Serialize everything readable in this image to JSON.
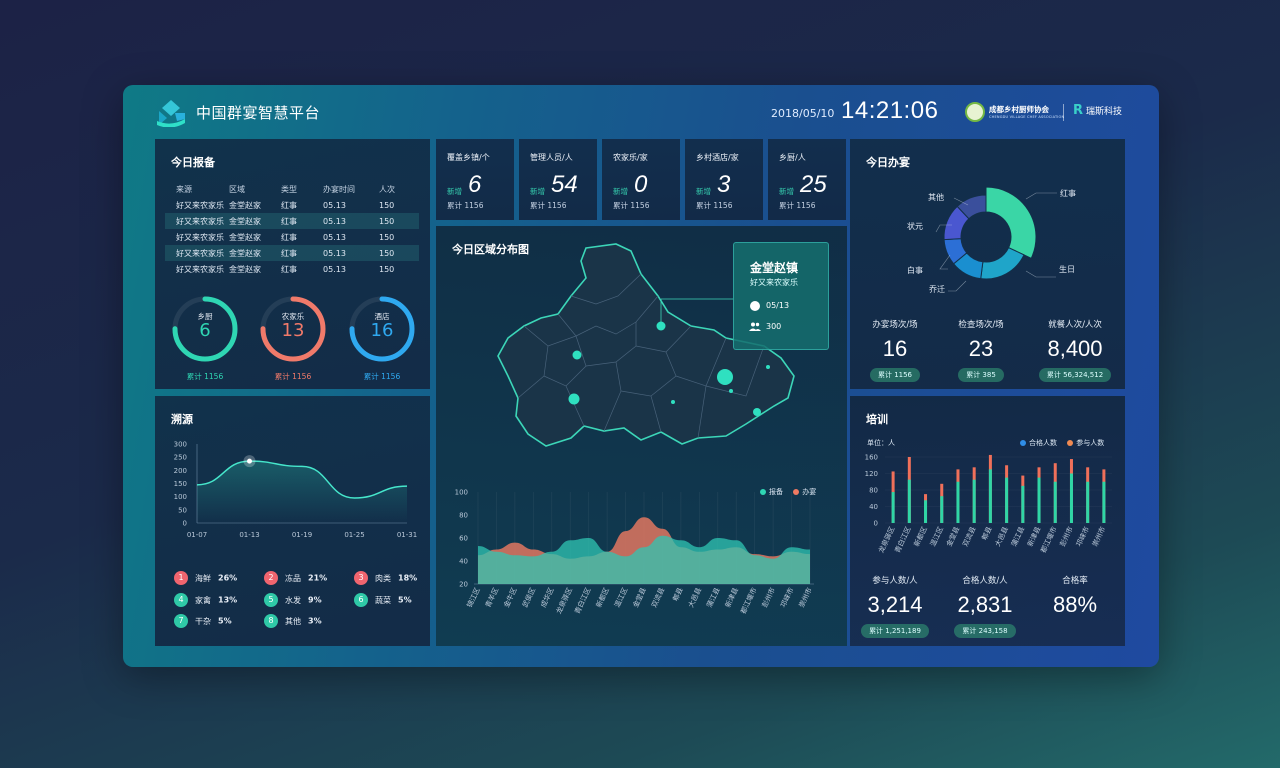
{
  "header": {
    "title": "中国群宴智慧平台",
    "date": "2018/05/10",
    "time": "14:21:06",
    "association_name": "成都乡村厨师协会",
    "association_sub": "CHENGDU VILLAGE CHEF ASSOCIATION",
    "brand": "瑞斯科技",
    "brand_mark": "R"
  },
  "report": {
    "title": "今日报备",
    "columns": [
      "来源",
      "区域",
      "类型",
      "办宴时间",
      "人次"
    ],
    "rows": [
      [
        "好又来农家乐",
        "金堂赵家",
        "红事",
        "05.13",
        "150"
      ],
      [
        "好又来农家乐",
        "金堂赵家",
        "红事",
        "05.13",
        "150"
      ],
      [
        "好又来农家乐",
        "金堂赵家",
        "红事",
        "05.13",
        "150"
      ],
      [
        "好又来农家乐",
        "金堂赵家",
        "红事",
        "05.13",
        "150"
      ],
      [
        "好又来农家乐",
        "金堂赵家",
        "红事",
        "05.13",
        "150"
      ]
    ],
    "rings": [
      {
        "label": "乡厨",
        "value": "6",
        "total": "累计 1156",
        "color": "#2fd6b3",
        "fraction": 0.75
      },
      {
        "label": "农家乐",
        "value": "13",
        "total": "累计 1156",
        "color": "#f07a6a",
        "fraction": 0.75
      },
      {
        "label": "酒店",
        "value": "16",
        "total": "累计 1156",
        "color": "#2fa9f0",
        "fraction": 0.75
      }
    ]
  },
  "stats": [
    {
      "label": "覆盖乡镇/个",
      "new_label": "新增",
      "value": "6",
      "total": "累计 1156"
    },
    {
      "label": "管理人员/人",
      "new_label": "新增",
      "value": "54",
      "total": "累计 1156"
    },
    {
      "label": "农家乐/家",
      "new_label": "新增",
      "value": "0",
      "total": "累计 1156"
    },
    {
      "label": "乡村酒店/家",
      "new_label": "新增",
      "value": "3",
      "total": "累计 1156"
    },
    {
      "label": "乡厨/人",
      "new_label": "新增",
      "value": "25",
      "total": "累计 1156"
    }
  ],
  "map": {
    "title": "今日区域分布图",
    "popup": {
      "town": "金堂赵镇",
      "venue": "好又来农家乐",
      "date": "05/13",
      "count": "300"
    },
    "legend": [
      {
        "name": "报备",
        "color": "#2fd6b3"
      },
      {
        "name": "办宴",
        "color": "#ef7a62"
      }
    ]
  },
  "trace": {
    "title": "溯源",
    "categories": [
      {
        "num": "1",
        "label": "海鲜",
        "pct": "26%",
        "color": "#f0656f"
      },
      {
        "num": "2",
        "label": "冻品",
        "pct": "21%",
        "color": "#f0656f"
      },
      {
        "num": "3",
        "label": "肉类",
        "pct": "18%",
        "color": "#f0656f"
      },
      {
        "num": "4",
        "label": "家禽",
        "pct": "13%",
        "color": "#2fc9a7"
      },
      {
        "num": "5",
        "label": "水发",
        "pct": "9%",
        "color": "#2fc9a7"
      },
      {
        "num": "6",
        "label": "蔬菜",
        "pct": "5%",
        "color": "#2fc9a7"
      },
      {
        "num": "7",
        "label": "干杂",
        "pct": "5%",
        "color": "#2fc9a7"
      },
      {
        "num": "8",
        "label": "其他",
        "pct": "3%",
        "color": "#2fc9a7"
      }
    ]
  },
  "banquet": {
    "title": "今日办宴",
    "pie_labels": [
      "红事",
      "生日",
      "乔迁",
      "白事",
      "状元",
      "其他"
    ],
    "kpis": [
      {
        "label": "办宴场次/场",
        "value": "16",
        "total": "累计 1156"
      },
      {
        "label": "检查场次/场",
        "value": "23",
        "total": "累计 385"
      },
      {
        "label": "就餐人次/人次",
        "value": "8,400",
        "total": "累计 56,324,512"
      }
    ]
  },
  "training": {
    "title": "培训",
    "unit": "单位：人",
    "legend": [
      {
        "name": "合格人数",
        "color": "#2f8ee8"
      },
      {
        "name": "参与人数",
        "color": "#f08a52"
      }
    ],
    "kpis": [
      {
        "label": "参与人数/人",
        "value": "3,214",
        "total": "累计 1,251,189"
      },
      {
        "label": "合格人数/人",
        "value": "2,831",
        "total": "累计 243,158"
      },
      {
        "label": "合格率",
        "value": "88%",
        "total": ""
      }
    ]
  },
  "chart_data": [
    {
      "type": "line",
      "title": "溯源",
      "x": [
        "01-07",
        "01-13",
        "01-19",
        "01-25",
        "01-31"
      ],
      "ylim": [
        0,
        300
      ],
      "yticks": [
        0,
        50,
        100,
        150,
        200,
        250,
        300
      ],
      "series": [
        {
          "name": "溯源",
          "values": [
            145,
            235,
            215,
            95,
            140
          ]
        }
      ]
    },
    {
      "type": "area",
      "title": "今日区域分布图",
      "categories": [
        "锦江区",
        "青羊区",
        "金牛区",
        "武侯区",
        "成华区",
        "龙泉驿区",
        "青白江区",
        "新都区",
        "温江区",
        "金堂县",
        "双流县",
        "郫县",
        "大邑县",
        "蒲江县",
        "新津县",
        "都江堰市",
        "彭州市",
        "邛崃市",
        "崇州市"
      ],
      "ylim": [
        20,
        100
      ],
      "yticks": [
        20,
        40,
        60,
        80,
        100
      ],
      "series": [
        {
          "name": "报备",
          "values": [
            53,
            48,
            45,
            44,
            48,
            58,
            60,
            48,
            44,
            52,
            62,
            58,
            52,
            60,
            58,
            45,
            42,
            52,
            50
          ]
        },
        {
          "name": "办宴",
          "values": [
            45,
            50,
            56,
            50,
            46,
            42,
            44,
            48,
            66,
            78,
            68,
            52,
            48,
            50,
            52,
            46,
            44,
            48,
            46
          ]
        }
      ]
    },
    {
      "type": "pie",
      "title": "今日办宴",
      "categories": [
        "红事",
        "生日",
        "乔迁",
        "白事",
        "状元",
        "其他"
      ],
      "values": [
        32,
        20,
        12,
        10,
        14,
        12
      ]
    },
    {
      "type": "bar",
      "title": "培训",
      "categories": [
        "龙泉驿区",
        "青白江区",
        "新都区",
        "温江区",
        "金堂县",
        "双流县",
        "郫县",
        "大邑县",
        "蒲江县",
        "新津县",
        "都江堰市",
        "彭州市",
        "邛崃市",
        "崇州市"
      ],
      "ylim": [
        0,
        160
      ],
      "yticks": [
        0,
        20,
        40,
        60,
        80,
        100,
        120,
        140,
        160
      ],
      "series": [
        {
          "name": "合格人数",
          "values": [
            75,
            105,
            55,
            65,
            100,
            105,
            130,
            110,
            90,
            110,
            100,
            120,
            100,
            100
          ]
        },
        {
          "name": "参与人数",
          "values": [
            125,
            160,
            70,
            95,
            130,
            135,
            165,
            140,
            115,
            135,
            145,
            155,
            135,
            130
          ]
        }
      ]
    }
  ]
}
